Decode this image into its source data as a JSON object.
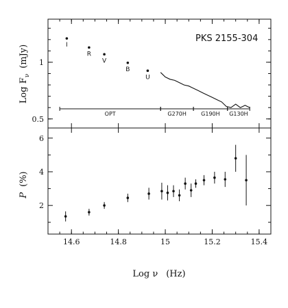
{
  "chart_data": [
    {
      "type": "scatter",
      "title": "PKS 2155-304",
      "ylabel_main": "Log F",
      "ylabel_sub": "ν",
      "ylabel_unit": "(mJy)",
      "ylim": [
        0.42,
        1.38
      ],
      "yticks": [
        0.5,
        1
      ],
      "yticklabels": [
        "0.5",
        "1"
      ],
      "xlim": [
        14.5,
        15.45
      ],
      "points": [
        {
          "x": 14.58,
          "y": 1.21,
          "label": "I"
        },
        {
          "x": 14.675,
          "y": 1.13,
          "label": "R"
        },
        {
          "x": 14.74,
          "y": 1.07,
          "label": "V"
        },
        {
          "x": 14.84,
          "y": 0.995,
          "label": "B"
        },
        {
          "x": 14.925,
          "y": 0.925,
          "label": "U"
        }
      ],
      "spectrum": {
        "x": [
          14.98,
          15.0,
          15.02,
          15.04,
          15.06,
          15.08,
          15.1,
          15.12,
          15.14,
          15.16,
          15.18,
          15.2,
          15.22,
          15.24,
          15.26,
          15.28,
          15.3,
          15.32,
          15.34,
          15.36
        ],
        "y": [
          0.91,
          0.87,
          0.85,
          0.84,
          0.82,
          0.8,
          0.79,
          0.77,
          0.75,
          0.73,
          0.71,
          0.69,
          0.67,
          0.65,
          0.61,
          0.6,
          0.63,
          0.6,
          0.62,
          0.6
        ]
      },
      "bands": [
        {
          "label": "OPT",
          "x0": 14.55,
          "x1": 14.98
        },
        {
          "label": "G270H",
          "x0": 14.98,
          "x1": 15.12
        },
        {
          "label": "G190H",
          "x0": 15.12,
          "x1": 15.265
        },
        {
          "label": "G130H",
          "x0": 15.265,
          "x1": 15.36
        }
      ]
    },
    {
      "type": "scatter",
      "ylabel_main": "P",
      "ylabel_unit": "(%)",
      "xlabel_main": "Log ν",
      "xlabel_unit": "(Hz)",
      "ylim": [
        0.3,
        6.6
      ],
      "yticks": [
        2,
        4,
        6
      ],
      "yticklabels": [
        "2",
        "4",
        "6"
      ],
      "xlim": [
        14.5,
        15.45
      ],
      "xticks": [
        14.6,
        14.8,
        15.0,
        15.2,
        15.4
      ],
      "xticklabels": [
        "14.6",
        "14.8",
        "15",
        "15.2",
        "15.4"
      ],
      "points": [
        {
          "x": 14.575,
          "y": 1.35,
          "err": 0.3
        },
        {
          "x": 14.675,
          "y": 1.6,
          "err": 0.2
        },
        {
          "x": 14.74,
          "y": 2.0,
          "err": 0.2
        },
        {
          "x": 14.84,
          "y": 2.45,
          "err": 0.25
        },
        {
          "x": 14.93,
          "y": 2.7,
          "err": 0.35
        },
        {
          "x": 14.985,
          "y": 2.85,
          "err": 0.5
        },
        {
          "x": 15.01,
          "y": 2.75,
          "err": 0.45
        },
        {
          "x": 15.035,
          "y": 2.85,
          "err": 0.35
        },
        {
          "x": 15.06,
          "y": 2.6,
          "err": 0.35
        },
        {
          "x": 15.085,
          "y": 3.3,
          "err": 0.35
        },
        {
          "x": 15.11,
          "y": 2.9,
          "err": 0.4
        },
        {
          "x": 15.13,
          "y": 3.3,
          "err": 0.25
        },
        {
          "x": 15.165,
          "y": 3.5,
          "err": 0.3
        },
        {
          "x": 15.21,
          "y": 3.65,
          "err": 0.35
        },
        {
          "x": 15.255,
          "y": 3.55,
          "err": 0.45
        },
        {
          "x": 15.3,
          "y": 4.8,
          "err": 0.8
        },
        {
          "x": 15.345,
          "y": 3.5,
          "err": 1.5
        }
      ]
    }
  ]
}
